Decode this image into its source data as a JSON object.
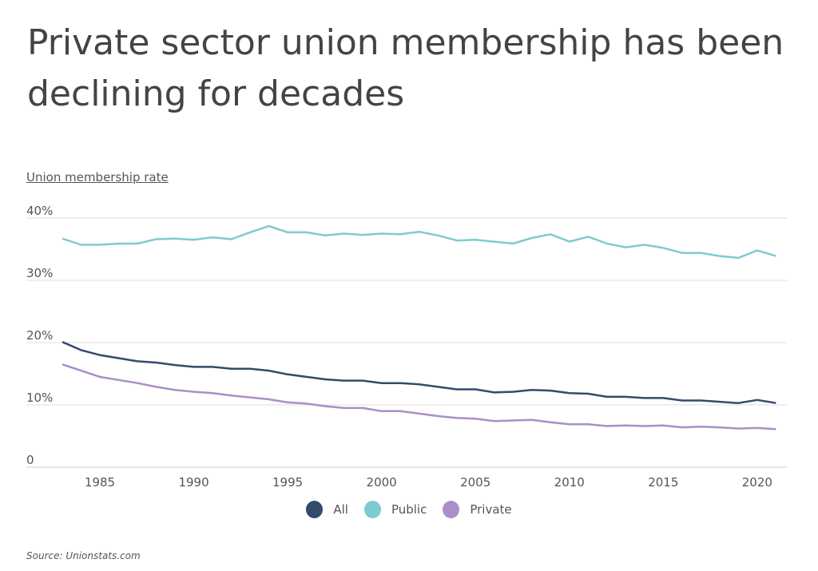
{
  "title": "Private sector union membership has been declining for decades",
  "source": "Source:  Unionstats.com",
  "chart_data": {
    "type": "line",
    "title": "Private sector union membership has been declining for decades",
    "ylabel": "Union membership rate",
    "xlabel": "",
    "ylim": [
      0,
      40
    ],
    "xlim": [
      1983,
      2021
    ],
    "grid": true,
    "legend_position": "bottom",
    "yticks": [
      {
        "v": 0,
        "label": "0"
      },
      {
        "v": 10,
        "label": "10%"
      },
      {
        "v": 20,
        "label": "20%"
      },
      {
        "v": 30,
        "label": "30%"
      },
      {
        "v": 40,
        "label": "40%"
      }
    ],
    "xticks": [
      1985,
      1990,
      1995,
      2000,
      2005,
      2010,
      2015,
      2020
    ],
    "x": [
      1983,
      1984,
      1985,
      1986,
      1987,
      1988,
      1989,
      1990,
      1991,
      1992,
      1993,
      1994,
      1995,
      1996,
      1997,
      1998,
      1999,
      2000,
      2001,
      2002,
      2003,
      2004,
      2005,
      2006,
      2007,
      2008,
      2009,
      2010,
      2011,
      2012,
      2013,
      2014,
      2015,
      2016,
      2017,
      2018,
      2019,
      2020,
      2021
    ],
    "series": [
      {
        "name": "All",
        "color": "#344b6b",
        "values": [
          20.1,
          18.8,
          18.0,
          17.5,
          17.0,
          16.8,
          16.4,
          16.1,
          16.1,
          15.8,
          15.8,
          15.5,
          14.9,
          14.5,
          14.1,
          13.9,
          13.9,
          13.5,
          13.5,
          13.3,
          12.9,
          12.5,
          12.5,
          12.0,
          12.1,
          12.4,
          12.3,
          11.9,
          11.8,
          11.3,
          11.3,
          11.1,
          11.1,
          10.7,
          10.7,
          10.5,
          10.3,
          10.8,
          10.3
        ]
      },
      {
        "name": "Public",
        "color": "#7ecbcf",
        "values": [
          36.7,
          35.7,
          35.7,
          35.9,
          35.9,
          36.6,
          36.7,
          36.5,
          36.9,
          36.6,
          37.7,
          38.7,
          37.7,
          37.7,
          37.2,
          37.5,
          37.3,
          37.5,
          37.4,
          37.8,
          37.2,
          36.4,
          36.5,
          36.2,
          35.9,
          36.8,
          37.4,
          36.2,
          37.0,
          35.9,
          35.3,
          35.7,
          35.2,
          34.4,
          34.4,
          33.9,
          33.6,
          34.8,
          33.9
        ]
      },
      {
        "name": "Private",
        "color": "#a98fc8",
        "values": [
          16.5,
          15.5,
          14.5,
          14.0,
          13.5,
          12.9,
          12.4,
          12.1,
          11.9,
          11.5,
          11.2,
          10.9,
          10.4,
          10.2,
          9.8,
          9.5,
          9.5,
          9.0,
          9.0,
          8.6,
          8.2,
          7.9,
          7.8,
          7.4,
          7.5,
          7.6,
          7.2,
          6.9,
          6.9,
          6.6,
          6.7,
          6.6,
          6.7,
          6.4,
          6.5,
          6.4,
          6.2,
          6.3,
          6.1
        ]
      }
    ]
  }
}
